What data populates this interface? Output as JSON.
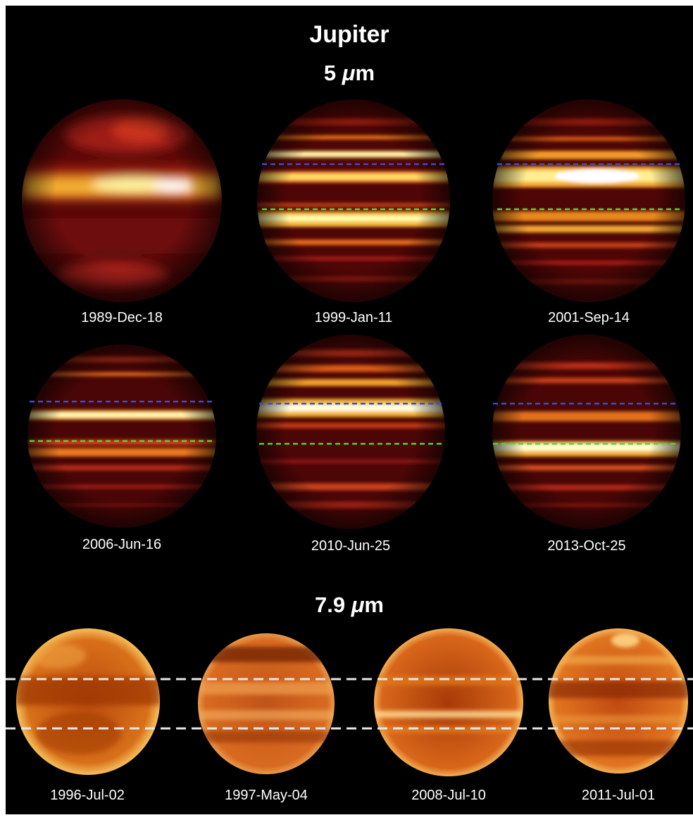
{
  "title": "Jupiter",
  "sections": [
    {
      "wavelength_value": "5",
      "wavelength_unit": "m",
      "panels": [
        {
          "date": "1989-Dec-18"
        },
        {
          "date": "1999-Jan-11"
        },
        {
          "date": "2001-Sep-14"
        },
        {
          "date": "2006-Jun-16"
        },
        {
          "date": "2010-Jun-25"
        },
        {
          "date": "2013-Oct-25"
        }
      ]
    },
    {
      "wavelength_value": "7.9",
      "wavelength_unit": "m",
      "panels": [
        {
          "date": "1996-Jul-02"
        },
        {
          "date": "1997-May-04"
        },
        {
          "date": "2008-Jul-10"
        },
        {
          "date": "2011-Jul-01"
        }
      ]
    }
  ],
  "colors": {
    "background": "#000000",
    "label_text": "#ffffff",
    "guide_blue": "#3b4bd6",
    "guide_green": "#5fcf3a",
    "guide_white": "#e6e6e6"
  }
}
